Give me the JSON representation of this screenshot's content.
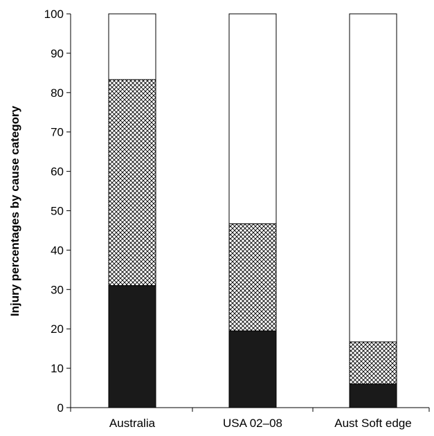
{
  "chart_data": {
    "type": "bar",
    "stacked": true,
    "title": "",
    "xlabel": "",
    "ylabel": "Injury percentages by cause category",
    "ylim": [
      0,
      100
    ],
    "yticks": [
      "0",
      "10",
      "20",
      "30",
      "40",
      "50",
      "60",
      "70",
      "80",
      "90",
      "100"
    ],
    "categories": [
      "Australia",
      "USA 02–08",
      "Aust Soft edge"
    ],
    "grid": false,
    "legend": "none",
    "series": [
      {
        "fill": "solid-black",
        "color": "#1a1a1a",
        "values": [
          31,
          19.5,
          6
        ]
      },
      {
        "fill": "crosshatch",
        "color": "#000000",
        "values": [
          52.3,
          27.2,
          10.7
        ]
      },
      {
        "fill": "white",
        "color": "#ffffff",
        "values": [
          16.7,
          53.3,
          83.3
        ]
      }
    ]
  }
}
